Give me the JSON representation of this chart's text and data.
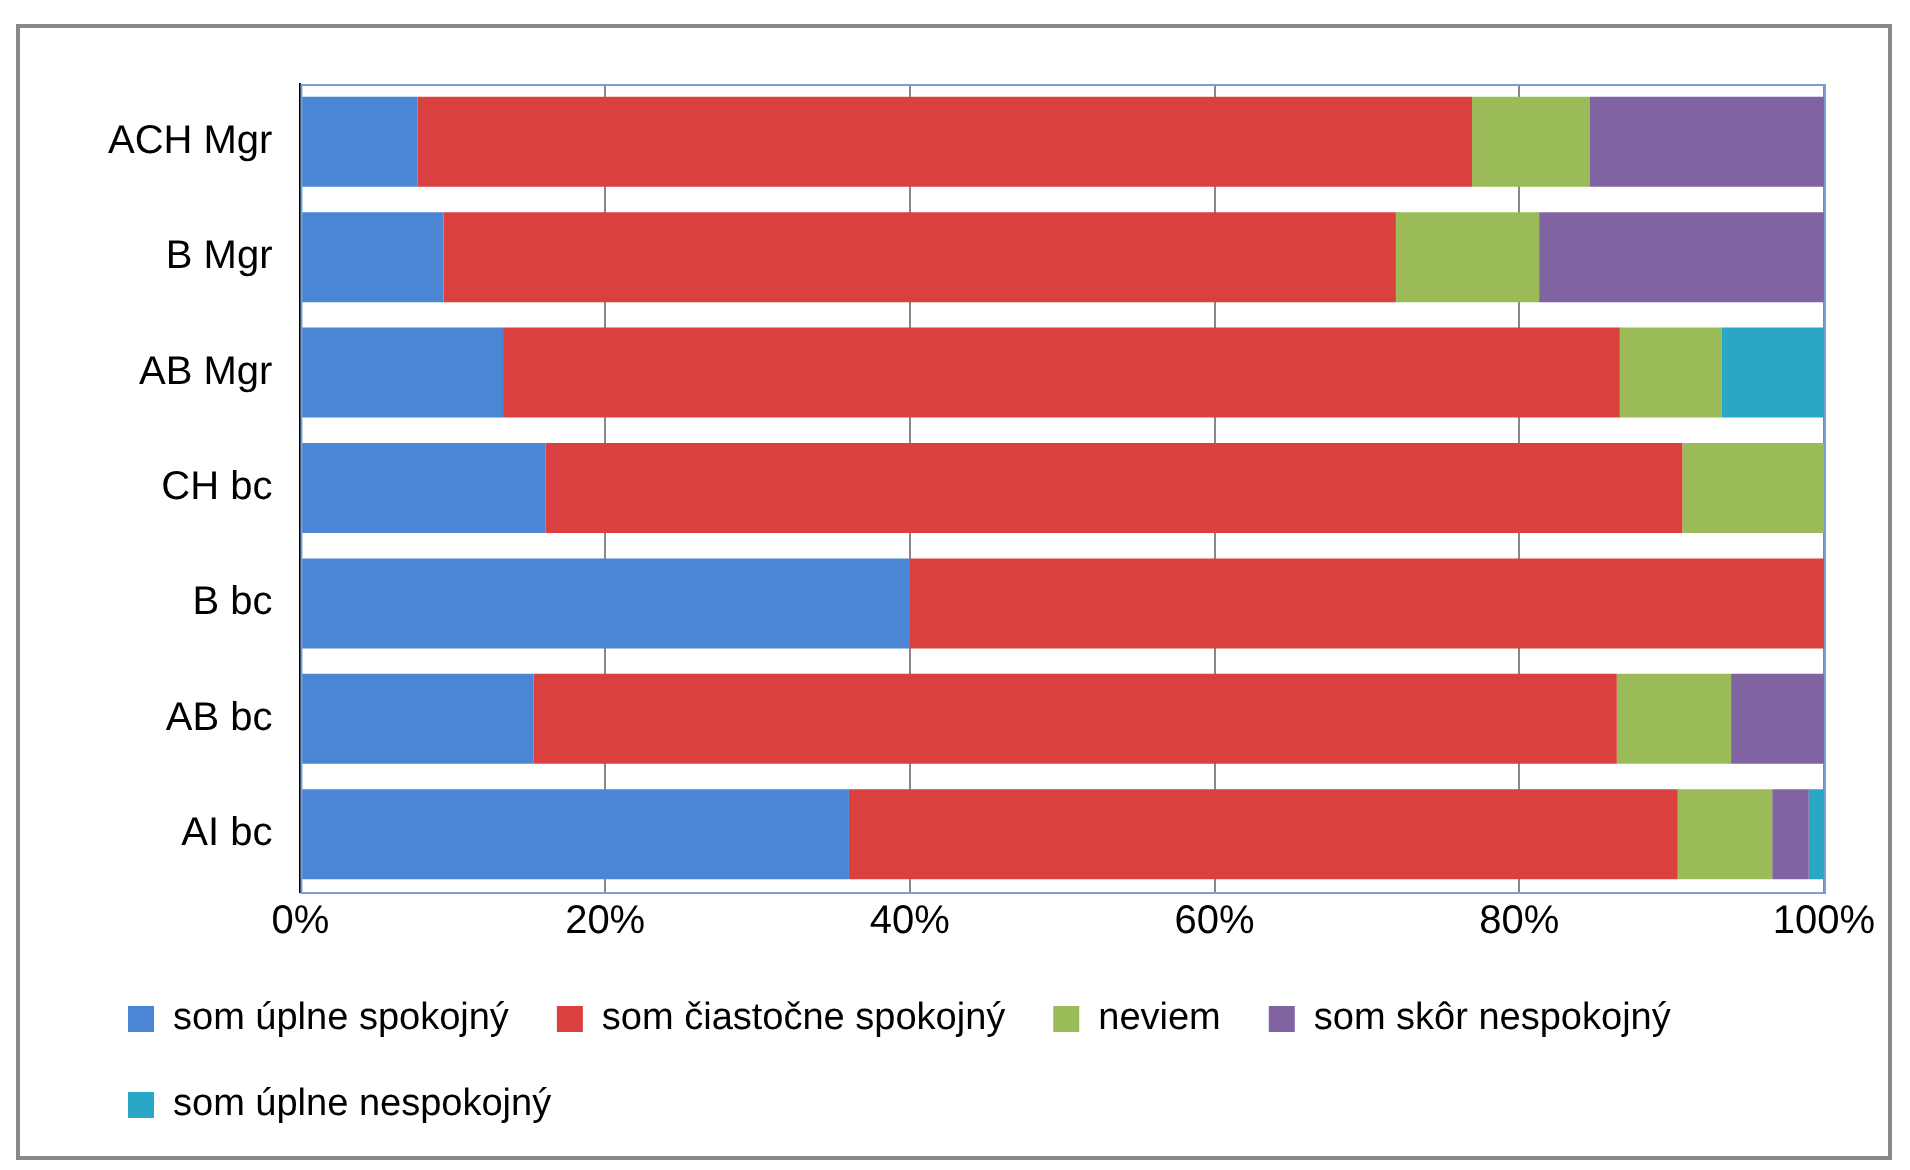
{
  "chart_data": {
    "type": "bar",
    "orientation": "horizontal",
    "stacked": true,
    "categories": [
      "ACH Mgr",
      "B Mgr",
      "AB Mgr",
      "CH bc",
      "B bc",
      "AB bc",
      "AI bc"
    ],
    "series": [
      {
        "name": "som úplne spokojný",
        "color": "#4a86d4",
        "values": [
          7.7,
          9.4,
          13.3,
          16.1,
          40,
          15.3,
          36.0
        ]
      },
      {
        "name": "som čiastočne spokojný",
        "color": "#d9403f",
        "values": [
          69.2,
          62.5,
          73.3,
          74.6,
          60,
          71.1,
          54.4
        ]
      },
      {
        "name": "neviem",
        "color": "#9bbb59",
        "values": [
          7.7,
          9.4,
          6.7,
          9.3,
          0,
          7.5,
          6.2
        ]
      },
      {
        "name": "som skôr nespokojný",
        "color": "#8064a2",
        "values": [
          15.4,
          18.7,
          0,
          0,
          0,
          6.1,
          2.4
        ]
      },
      {
        "name": "som úplne nespokojný",
        "color": "#2aa7c4",
        "values": [
          0,
          0,
          6.7,
          0,
          0,
          0,
          1.0
        ]
      }
    ],
    "xlim": [
      0,
      100
    ],
    "xticks": [
      {
        "value": 0,
        "label": "0%"
      },
      {
        "value": 20,
        "label": "20%"
      },
      {
        "value": 40,
        "label": "40%"
      },
      {
        "value": 60,
        "label": "60%"
      },
      {
        "value": 80,
        "label": "80%"
      },
      {
        "value": 100,
        "label": "100%"
      }
    ],
    "grid": "x",
    "legend": "bottom"
  }
}
